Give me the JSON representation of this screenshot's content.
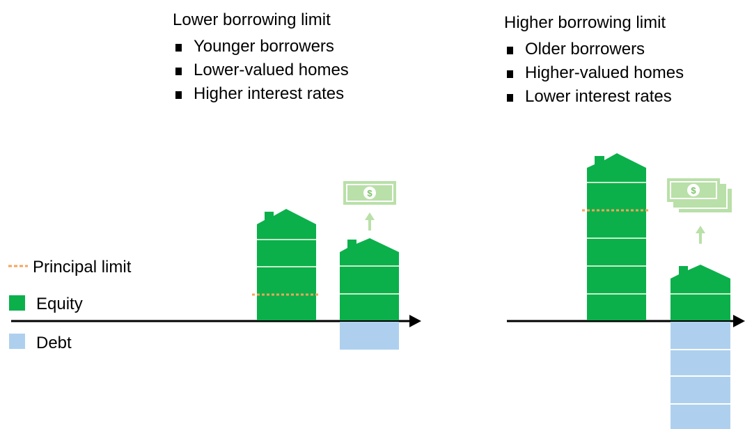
{
  "left_panel": {
    "title": "Lower borrowing limit",
    "bullets": [
      "Younger borrowers",
      "Lower-valued homes",
      "Higher interest rates"
    ]
  },
  "right_panel": {
    "title": "Higher borrowing limit",
    "bullets": [
      "Older borrowers",
      "Higher-valued homes",
      "Lower interest rates"
    ]
  },
  "legend": {
    "principal_limit": "Principal limit",
    "equity": "Equity",
    "debt": "Debt"
  },
  "colors": {
    "equity": "#0bb04b",
    "debt": "#aed0ee",
    "principal_limit": "#f4a45a",
    "cash": "#b9e0a8",
    "axis": "#000000"
  }
}
